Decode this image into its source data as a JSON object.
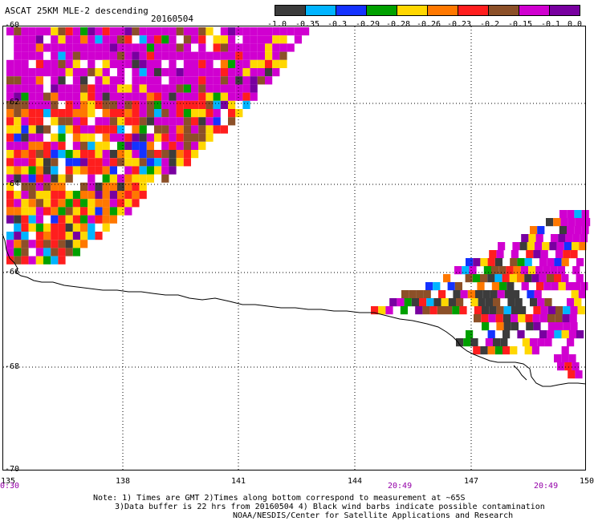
{
  "header": {
    "title": "ASCAT 25KM MLE-2 descending",
    "date": "20160504"
  },
  "colorbar": {
    "colors": [
      "#3c3c3c",
      "#00b4ff",
      "#1432ff",
      "#00a000",
      "#ffd700",
      "#ff7800",
      "#ff1e1e",
      "#8c5028",
      "#d000d0",
      "#7800a0"
    ],
    "ticks": [
      "-1.0",
      "-0.35",
      "-0.3",
      "-0.29",
      "-0.28",
      "-0.26",
      "-0.23",
      "-0.2",
      "-0.15",
      "-0.1",
      "0.0"
    ]
  },
  "map": {
    "latitudes": [
      "-60",
      "-62",
      "-64",
      "-66",
      "-68",
      "-70"
    ],
    "longitudes": [
      "135",
      "138",
      "141",
      "144",
      "147",
      "150"
    ],
    "times": [
      "0:30",
      "20:49",
      "20:49"
    ],
    "lat_range": [
      -70,
      -60
    ],
    "lon_range": [
      135,
      150
    ],
    "grid": "dotted"
  },
  "footer": {
    "line1": "Note: 1) Times are GMT 2)Times along bottom correspond to measurement at ~65S",
    "line2": "3)Data buffer is 22 hrs from 20160504 4) Black wind barbs indicate possible contamination",
    "line3": "NOAA/NESDIS/Center for Satellite Applications and Research"
  }
}
